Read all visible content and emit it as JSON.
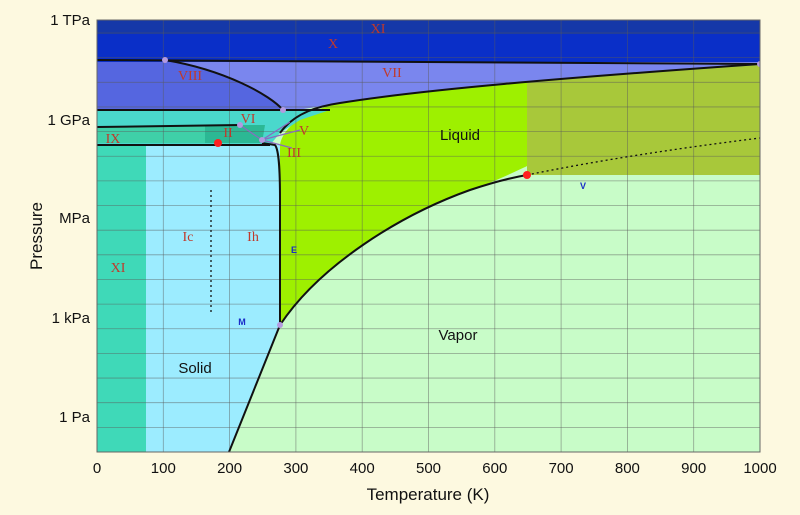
{
  "chart_data": {
    "type": "area",
    "title": "",
    "xlabel": "Temperature (K)",
    "ylabel": "Pressure",
    "xlim": [
      0,
      1000
    ],
    "x_ticks": [
      "0",
      "100",
      "200",
      "300",
      "400",
      "500",
      "600",
      "700",
      "800",
      "900",
      "1000"
    ],
    "y_ticks": [
      "1 TPa",
      "1 GPa",
      "MPa",
      "1 kPa",
      "1 Pa"
    ],
    "grid": true,
    "colors": {
      "ice_x_xi": "#0a2fc8",
      "ice_vii_viii": "#7a86ee",
      "high_pressure_ice": "#4ad8cc",
      "ice_xi_low_t": "#3fd9b8",
      "solid": "#9cecff",
      "liquid": "#9ef000",
      "supercritical": "#a8c83a",
      "vapor": "#c8fcc8",
      "boundary": "#111111",
      "critical_point": "#ff2020",
      "triple_point": "#b49ae0",
      "point_labels": "#1a2cc8",
      "phase_labels": "#c0392b"
    },
    "phase_labels_serif": [
      "XI",
      "X",
      "VIII",
      "VII",
      "IX",
      "II",
      "VI",
      "V",
      "III",
      "Ic",
      "Ih",
      "XI"
    ],
    "phase_labels_sans": [
      "Liquid",
      "Solid",
      "Vapor"
    ],
    "point_labels": [
      "E",
      "M",
      "V"
    ],
    "boundaries": {
      "sublimation": {
        "x": [
          200,
          273.16
        ],
        "description": "solid-vapor"
      },
      "melting": {
        "x": [
          273.16,
          273.16
        ]
      },
      "vaporization": {
        "x": [
          273.16,
          647.1
        ]
      },
      "critical_point": {
        "x": 647.1
      },
      "triple_point": {
        "x": 273.16
      }
    }
  }
}
